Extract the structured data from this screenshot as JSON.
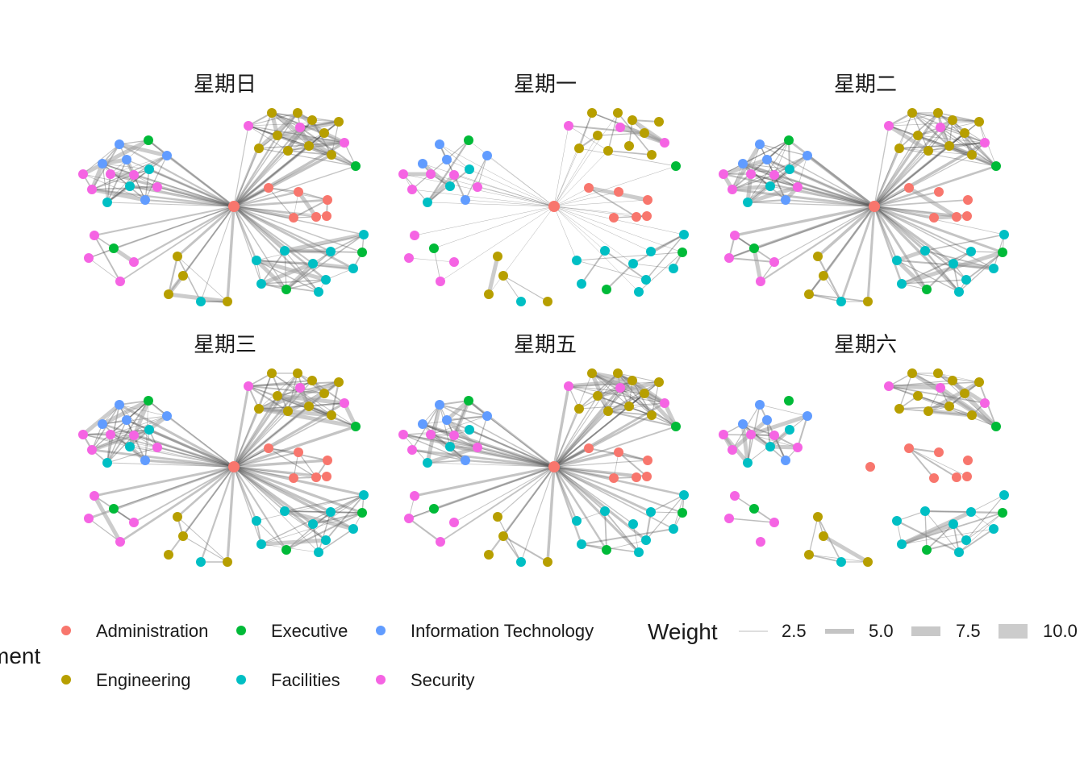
{
  "facets": [
    {
      "title": "星期日",
      "hub": true,
      "mode": "dense"
    },
    {
      "title": "星期一",
      "hub": true,
      "mode": "sparse"
    },
    {
      "title": "星期二",
      "hub": true,
      "mode": "dense"
    },
    {
      "title": "星期三",
      "hub": true,
      "mode": "dense"
    },
    {
      "title": "星期五",
      "hub": true,
      "mode": "dense"
    },
    {
      "title": "星期六",
      "hub": false,
      "mode": "clusters"
    }
  ],
  "legend": {
    "department_title": "ment",
    "departments": [
      {
        "name": "Administration",
        "color": "#F8766D"
      },
      {
        "name": "Executive",
        "color": "#00BA38"
      },
      {
        "name": "Information Technology",
        "color": "#619CFF"
      },
      {
        "name": "Engineering",
        "color": "#B79F00"
      },
      {
        "name": "Facilities",
        "color": "#00BFC4"
      },
      {
        "name": "Security",
        "color": "#F564E3"
      }
    ],
    "weight_title": "Weight",
    "weights": [
      "2.5",
      "5.0",
      "7.5",
      "10.0"
    ]
  }
}
